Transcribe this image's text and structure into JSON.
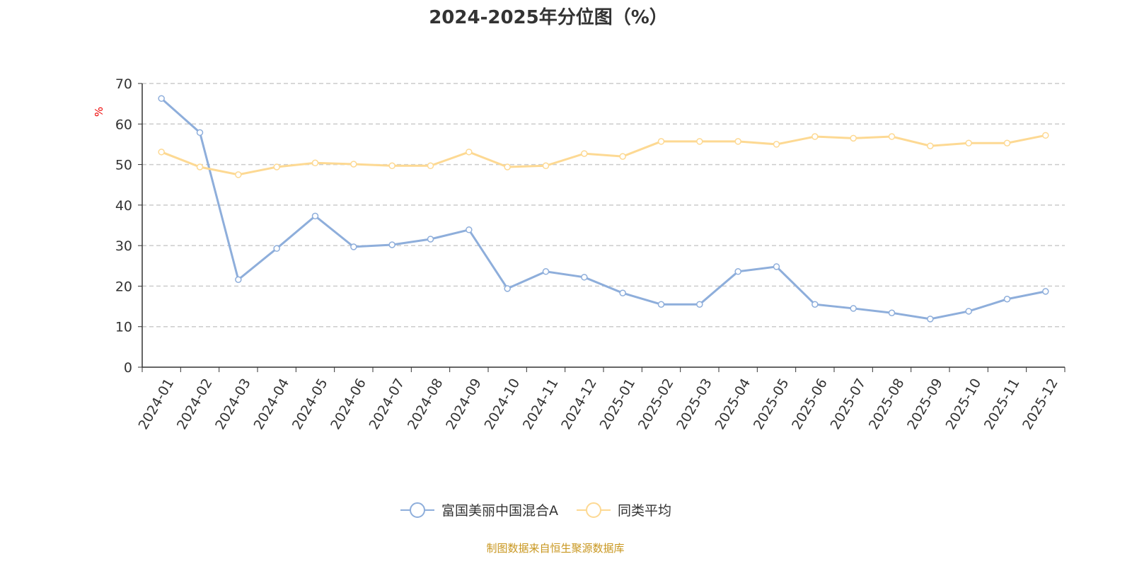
{
  "chart_data": {
    "type": "line",
    "title": "2024-2025年分位图（%）",
    "ylabel": "%",
    "xlabel": "",
    "ylim": [
      0,
      70
    ],
    "yticks": [
      0,
      10,
      20,
      30,
      40,
      50,
      60,
      70
    ],
    "grid": true,
    "legend_position": "bottom",
    "categories": [
      "2024-01",
      "2024-02",
      "2024-03",
      "2024-04",
      "2024-05",
      "2024-06",
      "2024-07",
      "2024-08",
      "2024-09",
      "2024-10",
      "2024-11",
      "2024-12",
      "2025-01",
      "2025-02",
      "2025-03",
      "2025-04",
      "2025-05",
      "2025-06",
      "2025-07",
      "2025-08",
      "2025-09",
      "2025-10",
      "2025-11",
      "2025-12"
    ],
    "series": [
      {
        "name": "富国美丽中国混合A",
        "color": "#8eaedb",
        "values": [
          66.3,
          57.9,
          21.6,
          29.3,
          37.3,
          29.7,
          30.2,
          31.6,
          33.9,
          19.4,
          23.6,
          22.2,
          18.3,
          15.5,
          15.5,
          23.6,
          24.8,
          15.5,
          14.5,
          13.4,
          11.9,
          13.8,
          16.8,
          18.7
        ]
      },
      {
        "name": "同类平均",
        "color": "#fdd993",
        "values": [
          53.1,
          49.4,
          47.5,
          49.4,
          50.4,
          50.1,
          49.7,
          49.7,
          53.1,
          49.4,
          49.7,
          52.7,
          52.0,
          55.7,
          55.7,
          55.7,
          55.0,
          56.9,
          56.5,
          56.9,
          54.6,
          55.3,
          55.3,
          57.2
        ]
      }
    ],
    "source": "制图数据来自恒生聚源数据库"
  }
}
